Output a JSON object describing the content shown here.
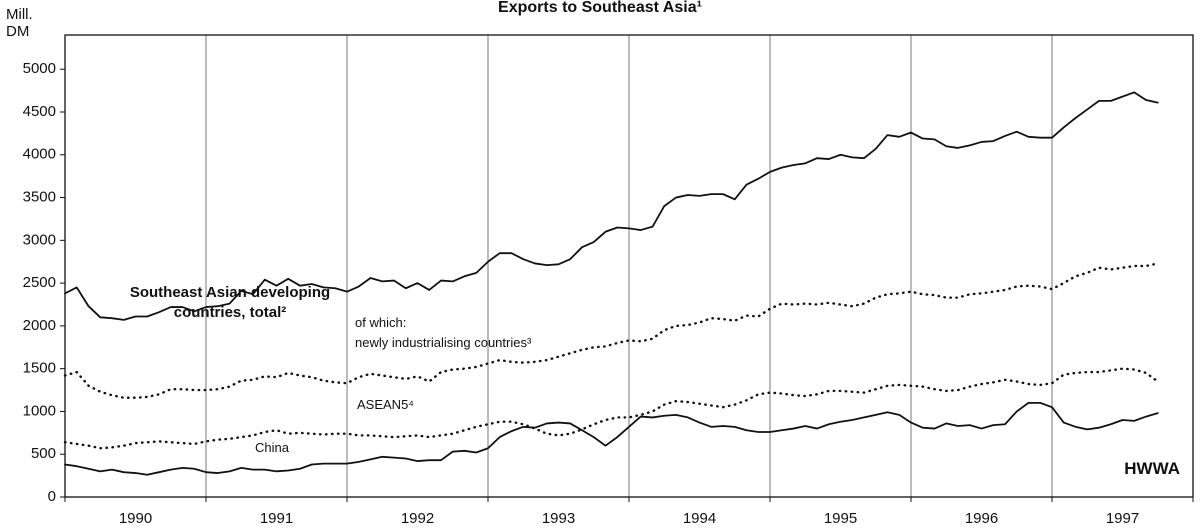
{
  "chart_data": {
    "type": "line",
    "title": "Exports to Southeast Asia¹",
    "y_label": "Mill. DM",
    "source": "HWWA",
    "xlim": [
      1990,
      1998
    ],
    "xticks": [
      {
        "value": 1990.5,
        "label": "1990"
      },
      {
        "value": 1991.5,
        "label": "1991"
      },
      {
        "value": 1992.5,
        "label": "1992"
      },
      {
        "value": 1993.5,
        "label": "1993"
      },
      {
        "value": 1994.5,
        "label": "1994"
      },
      {
        "value": 1995.5,
        "label": "1995"
      },
      {
        "value": 1996.5,
        "label": "1996"
      },
      {
        "value": 1997.5,
        "label": "1997"
      }
    ],
    "ylim": [
      0,
      5400
    ],
    "yticks": [
      0,
      500,
      1000,
      1500,
      2000,
      2500,
      3000,
      3500,
      4000,
      4500,
      5000
    ],
    "x": [
      1990,
      1990.083,
      1990.167,
      1990.25,
      1990.333,
      1990.417,
      1990.5,
      1990.583,
      1990.667,
      1990.75,
      1990.833,
      1990.917,
      1991,
      1991.083,
      1991.167,
      1991.25,
      1991.333,
      1991.417,
      1991.5,
      1991.583,
      1991.667,
      1991.75,
      1991.833,
      1991.917,
      1992,
      1992.083,
      1992.167,
      1992.25,
      1992.333,
      1992.417,
      1992.5,
      1992.583,
      1992.667,
      1992.75,
      1992.833,
      1992.917,
      1993,
      1993.083,
      1993.167,
      1993.25,
      1993.333,
      1993.417,
      1993.5,
      1993.583,
      1993.667,
      1993.75,
      1993.833,
      1993.917,
      1994,
      1994.083,
      1994.167,
      1994.25,
      1994.333,
      1994.417,
      1994.5,
      1994.583,
      1994.667,
      1994.75,
      1994.833,
      1994.917,
      1995,
      1995.083,
      1995.167,
      1995.25,
      1995.333,
      1995.417,
      1995.5,
      1995.583,
      1995.667,
      1995.75,
      1995.833,
      1995.917,
      1996,
      1996.083,
      1996.167,
      1996.25,
      1996.333,
      1996.417,
      1996.5,
      1996.583,
      1996.667,
      1996.75,
      1996.833,
      1996.917,
      1997,
      1997.083,
      1997.167,
      1997.25,
      1997.333,
      1997.417,
      1997.5,
      1997.583,
      1997.667,
      1997.75
    ],
    "series": [
      {
        "name": "Southeast Asian developing countries, total²",
        "color": "#111111",
        "style": "solid",
        "values": [
          2380,
          2450,
          2230,
          2100,
          2090,
          2070,
          2110,
          2110,
          2160,
          2220,
          2220,
          2170,
          2220,
          2230,
          2260,
          2410,
          2370,
          2540,
          2470,
          2550,
          2470,
          2490,
          2450,
          2440,
          2400,
          2460,
          2560,
          2520,
          2530,
          2440,
          2500,
          2420,
          2530,
          2520,
          2580,
          2620,
          2750,
          2850,
          2850,
          2780,
          2730,
          2710,
          2720,
          2780,
          2920,
          2980,
          3100,
          3150,
          3140,
          3120,
          3160,
          3400,
          3500,
          3530,
          3520,
          3540,
          3540,
          3480,
          3650,
          3720,
          3800,
          3850,
          3880,
          3900,
          3960,
          3950,
          4000,
          3970,
          3960,
          4070,
          4230,
          4210,
          4260,
          4190,
          4180,
          4100,
          4080,
          4110,
          4150,
          4160,
          4220,
          4270,
          4210,
          4200,
          4200,
          4320,
          4430,
          4530,
          4630,
          4630,
          4680,
          4730,
          4640,
          4610
        ]
      },
      {
        "name": "of which:\nnewly industrialising countries³",
        "color": "#111111",
        "style": "dotted",
        "values": [
          1420,
          1460,
          1300,
          1230,
          1190,
          1160,
          1160,
          1170,
          1200,
          1260,
          1260,
          1250,
          1250,
          1260,
          1290,
          1360,
          1370,
          1410,
          1400,
          1450,
          1420,
          1400,
          1360,
          1340,
          1330,
          1400,
          1440,
          1420,
          1400,
          1380,
          1410,
          1350,
          1460,
          1490,
          1500,
          1520,
          1560,
          1600,
          1580,
          1570,
          1580,
          1600,
          1640,
          1680,
          1720,
          1750,
          1760,
          1800,
          1830,
          1820,
          1850,
          1950,
          2000,
          2010,
          2040,
          2090,
          2080,
          2060,
          2120,
          2110,
          2200,
          2260,
          2250,
          2260,
          2250,
          2270,
          2250,
          2230,
          2260,
          2330,
          2370,
          2380,
          2400,
          2370,
          2360,
          2330,
          2330,
          2370,
          2380,
          2400,
          2420,
          2460,
          2470,
          2460,
          2430,
          2500,
          2580,
          2620,
          2680,
          2660,
          2680,
          2700,
          2700,
          2730
        ]
      },
      {
        "name": "ASEAN5⁴",
        "color": "#111111",
        "style": "dotted",
        "values": [
          640,
          620,
          600,
          570,
          580,
          600,
          630,
          640,
          650,
          640,
          630,
          620,
          650,
          670,
          680,
          700,
          720,
          760,
          780,
          740,
          750,
          740,
          730,
          740,
          740,
          720,
          720,
          710,
          700,
          710,
          720,
          700,
          720,
          740,
          780,
          820,
          850,
          880,
          880,
          850,
          800,
          740,
          720,
          740,
          790,
          850,
          900,
          930,
          930,
          960,
          1000,
          1080,
          1120,
          1110,
          1090,
          1070,
          1050,
          1080,
          1130,
          1200,
          1220,
          1210,
          1190,
          1180,
          1200,
          1240,
          1240,
          1230,
          1220,
          1260,
          1300,
          1310,
          1300,
          1290,
          1260,
          1240,
          1250,
          1290,
          1320,
          1340,
          1370,
          1350,
          1320,
          1310,
          1330,
          1430,
          1450,
          1460,
          1460,
          1480,
          1500,
          1490,
          1450,
          1350
        ]
      },
      {
        "name": "China",
        "color": "#111111",
        "style": "solid",
        "values": [
          380,
          360,
          330,
          300,
          320,
          290,
          280,
          260,
          290,
          320,
          340,
          330,
          290,
          280,
          300,
          340,
          320,
          320,
          300,
          310,
          330,
          380,
          390,
          390,
          390,
          410,
          440,
          470,
          460,
          450,
          420,
          430,
          430,
          530,
          540,
          520,
          570,
          700,
          770,
          820,
          810,
          860,
          870,
          860,
          780,
          700,
          600,
          700,
          820,
          940,
          930,
          950,
          960,
          930,
          870,
          820,
          830,
          820,
          780,
          760,
          760,
          780,
          800,
          830,
          800,
          850,
          880,
          900,
          930,
          960,
          990,
          960,
          870,
          810,
          800,
          860,
          830,
          840,
          800,
          840,
          850,
          1000,
          1100,
          1100,
          1050,
          870,
          820,
          790,
          810,
          850,
          900,
          890,
          940,
          980
        ]
      }
    ]
  }
}
